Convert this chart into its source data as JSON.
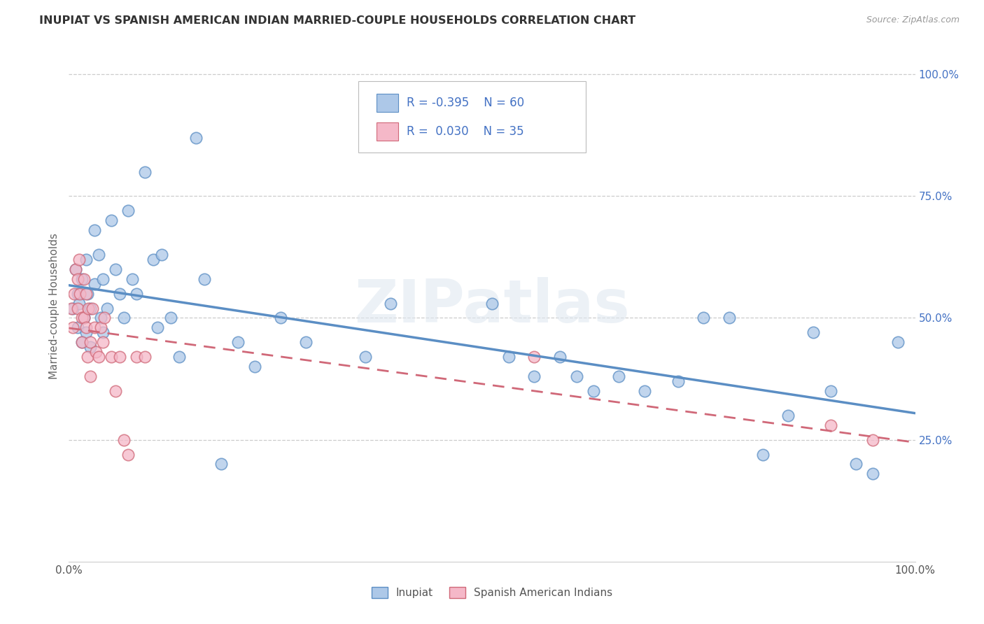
{
  "title": "INUPIAT VS SPANISH AMERICAN INDIAN MARRIED-COUPLE HOUSEHOLDS CORRELATION CHART",
  "source": "Source: ZipAtlas.com",
  "ylabel": "Married-couple Households",
  "legend_inupiat_R": "-0.395",
  "legend_inupiat_N": "60",
  "legend_spanish_R": "0.030",
  "legend_spanish_N": "35",
  "inupiat_color": "#adc8e8",
  "spanish_color": "#f5b8c8",
  "inupiat_line_color": "#5b8ec4",
  "spanish_line_color": "#d06878",
  "watermark": "ZIPatlas",
  "inupiat_x": [
    0.005,
    0.008,
    0.01,
    0.01,
    0.012,
    0.015,
    0.015,
    0.018,
    0.02,
    0.02,
    0.022,
    0.025,
    0.025,
    0.03,
    0.03,
    0.035,
    0.038,
    0.04,
    0.04,
    0.045,
    0.05,
    0.055,
    0.06,
    0.065,
    0.07,
    0.075,
    0.08,
    0.09,
    0.1,
    0.105,
    0.11,
    0.12,
    0.13,
    0.15,
    0.16,
    0.18,
    0.2,
    0.22,
    0.25,
    0.28,
    0.35,
    0.38,
    0.5,
    0.52,
    0.55,
    0.58,
    0.6,
    0.62,
    0.65,
    0.68,
    0.72,
    0.75,
    0.78,
    0.82,
    0.85,
    0.88,
    0.9,
    0.93,
    0.95,
    0.98
  ],
  "inupiat_y": [
    0.52,
    0.6,
    0.55,
    0.48,
    0.53,
    0.58,
    0.45,
    0.5,
    0.62,
    0.47,
    0.55,
    0.52,
    0.44,
    0.68,
    0.57,
    0.63,
    0.5,
    0.58,
    0.47,
    0.52,
    0.7,
    0.6,
    0.55,
    0.5,
    0.72,
    0.58,
    0.55,
    0.8,
    0.62,
    0.48,
    0.63,
    0.5,
    0.42,
    0.87,
    0.58,
    0.2,
    0.45,
    0.4,
    0.5,
    0.45,
    0.42,
    0.53,
    0.53,
    0.42,
    0.38,
    0.42,
    0.38,
    0.35,
    0.38,
    0.35,
    0.37,
    0.5,
    0.5,
    0.22,
    0.3,
    0.47,
    0.35,
    0.2,
    0.18,
    0.45
  ],
  "spanish_x": [
    0.003,
    0.005,
    0.006,
    0.008,
    0.01,
    0.01,
    0.012,
    0.013,
    0.015,
    0.015,
    0.018,
    0.018,
    0.02,
    0.02,
    0.022,
    0.023,
    0.025,
    0.025,
    0.028,
    0.03,
    0.032,
    0.035,
    0.038,
    0.04,
    0.042,
    0.05,
    0.055,
    0.06,
    0.065,
    0.07,
    0.08,
    0.09,
    0.55,
    0.9,
    0.95
  ],
  "spanish_y": [
    0.52,
    0.48,
    0.55,
    0.6,
    0.58,
    0.52,
    0.62,
    0.55,
    0.5,
    0.45,
    0.58,
    0.5,
    0.55,
    0.48,
    0.42,
    0.52,
    0.45,
    0.38,
    0.52,
    0.48,
    0.43,
    0.42,
    0.48,
    0.45,
    0.5,
    0.42,
    0.35,
    0.42,
    0.25,
    0.22,
    0.42,
    0.42,
    0.42,
    0.28,
    0.25
  ],
  "xlim": [
    0.0,
    1.0
  ],
  "ylim": [
    0.0,
    1.05
  ],
  "ytick_vals": [
    0.25,
    0.5,
    0.75,
    1.0
  ],
  "ytick_labels": [
    "25.0%",
    "50.0%",
    "75.0%",
    "100.0%"
  ],
  "background_color": "#ffffff",
  "grid_color": "#cccccc",
  "title_color": "#333333",
  "source_color": "#999999",
  "axis_label_color": "#666666",
  "right_tick_color": "#4472c4"
}
